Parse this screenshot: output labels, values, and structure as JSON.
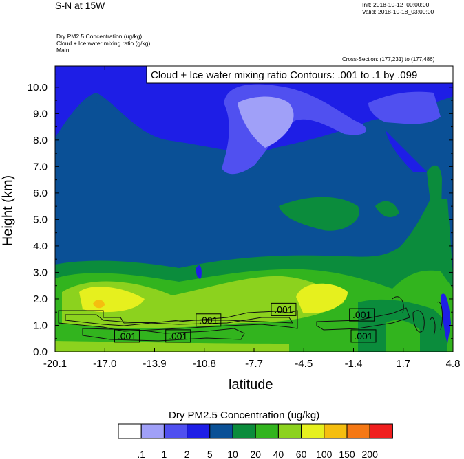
{
  "header": {
    "title": "S-N at 15W",
    "init": "Init: 2018-10-12_00:00:00",
    "valid": "Valid: 2018-10-18_03:00:00",
    "field1": "Dry PM2.5 Concentration   (ug/kg)",
    "field2": "Cloud + Ice water mixing ratio   (g/kg)",
    "field3": "Main",
    "cross_section": "Cross-Section: (177,231) to (177,486)"
  },
  "chart_data": {
    "type": "heatmap",
    "title": "Cloud + Ice water mixing ratio Contours: .001 to .1 by .099",
    "xlabel": "latitude",
    "ylabel": "Height (km)",
    "xlim": [
      -20.1,
      4.8
    ],
    "ylim": [
      0.0,
      10.8
    ],
    "x_ticks": [
      "-20.1",
      "-17.0",
      "-13.9",
      "-10.8",
      "-7.7",
      "-4.5",
      "-1.4",
      "1.7",
      "4.8"
    ],
    "y_ticks": [
      "0.0",
      "1.0",
      "2.0",
      "3.0",
      "4.0",
      "5.0",
      "6.0",
      "7.0",
      "8.0",
      "9.0",
      "10.0"
    ],
    "contour_labels": [
      {
        "text": ".001",
        "x": -15.6,
        "y": 0.6
      },
      {
        "text": ".001",
        "x": -12.4,
        "y": 0.6
      },
      {
        "text": ".001",
        "x": -10.5,
        "y": 1.2
      },
      {
        "text": ".001",
        "x": -5.8,
        "y": 1.6
      },
      {
        "text": ".001",
        "x": -0.9,
        "y": 1.4
      },
      {
        "text": ".001",
        "x": -0.8,
        "y": 0.6
      }
    ],
    "colorbar": {
      "title": "Dry PM2.5 Concentration  (ug/kg)",
      "levels": [
        ".1",
        "1",
        "2",
        "5",
        "10",
        "20",
        "40",
        "60",
        "100",
        "150",
        "200"
      ],
      "colors": [
        "#ffffff",
        "#a0a0f8",
        "#5050f0",
        "#1e1ee6",
        "#0a5096",
        "#0b8c3c",
        "#32b41e",
        "#8cd21e",
        "#e6f01e",
        "#f5be0f",
        "#f57814",
        "#f01e1e"
      ]
    }
  }
}
